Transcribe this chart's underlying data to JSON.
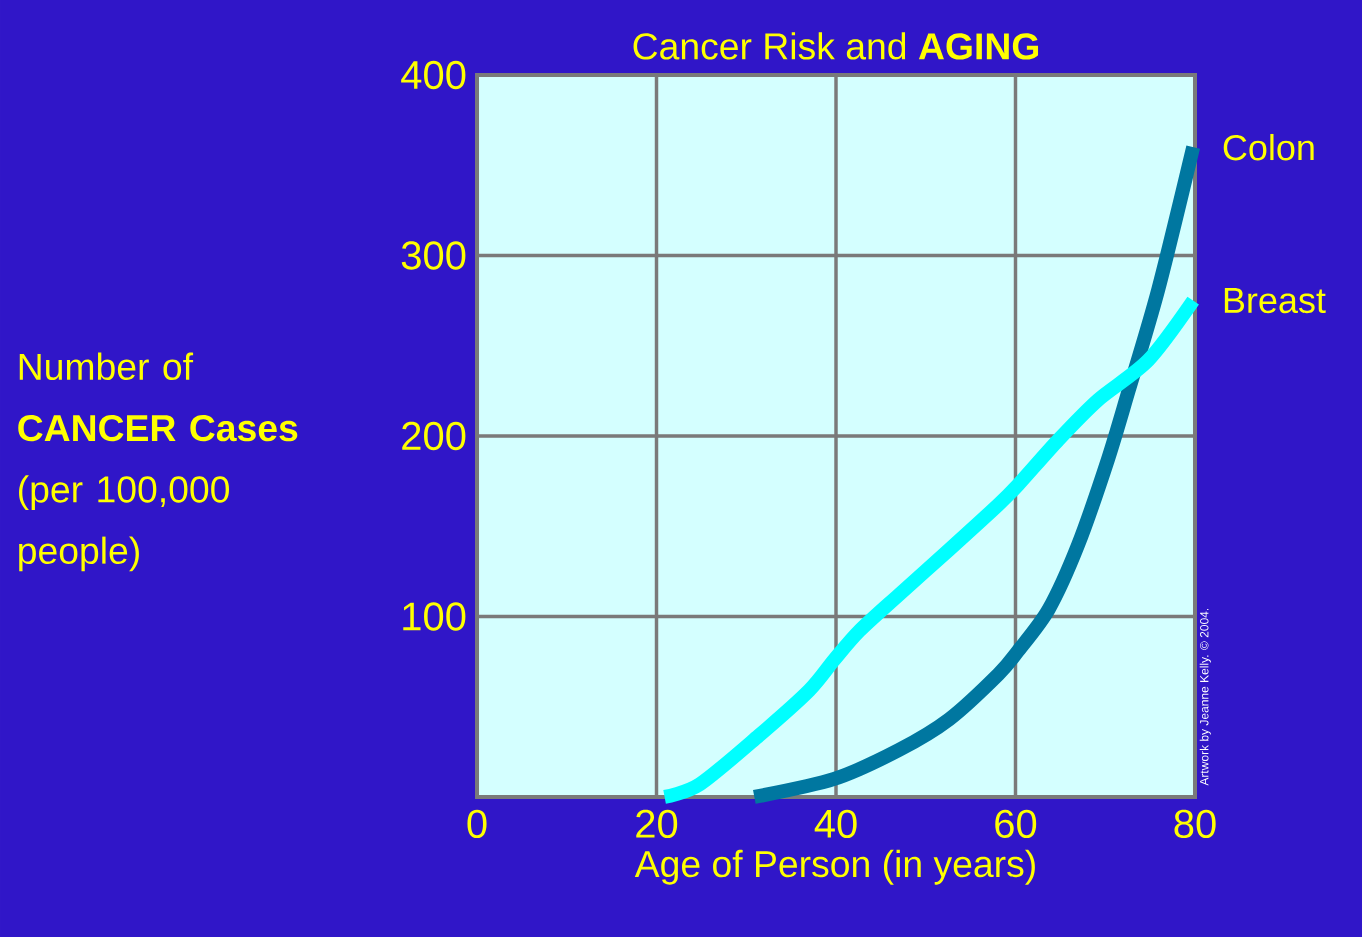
{
  "chart_data": {
    "type": "line",
    "title": "Cancer Risk and **AGING**",
    "xlabel": "Age of Person (in years)",
    "ylabel": "Number of **CANCER Cases** (per 100,000 people)",
    "xlim": [
      0,
      80
    ],
    "xticks": [
      0,
      20,
      40,
      60,
      80
    ],
    "ylim": [
      0,
      400
    ],
    "yticks": [
      100,
      200,
      300,
      400
    ],
    "grid": true,
    "line_style": "solid",
    "series": [
      {
        "name": "Colon",
        "color": "#0077a0",
        "x": [
          30.9,
          39.8,
          47,
          52.6,
          58.1,
          60.3,
          63.7,
          67,
          70.3,
          72.6,
          75.9,
          79.8
        ],
        "values": [
          0,
          10,
          26,
          43,
          68,
          81,
          104,
          140,
          187,
          225,
          281,
          360
        ]
      },
      {
        "name": "Breast",
        "color": "#00ffff",
        "x": [
          20.9,
          24.8,
          31.4,
          37,
          39.8,
          42.6,
          47,
          52.6,
          58.1,
          60.3,
          64.8,
          69.2,
          74.8,
          79.8
        ],
        "values": [
          0,
          7,
          34,
          59,
          76,
          92,
          112,
          137,
          162,
          173,
          198,
          220,
          242,
          275
        ]
      }
    ],
    "annotations": [
      "Artwork by Jeanne Kelly. © 2004."
    ]
  }
}
